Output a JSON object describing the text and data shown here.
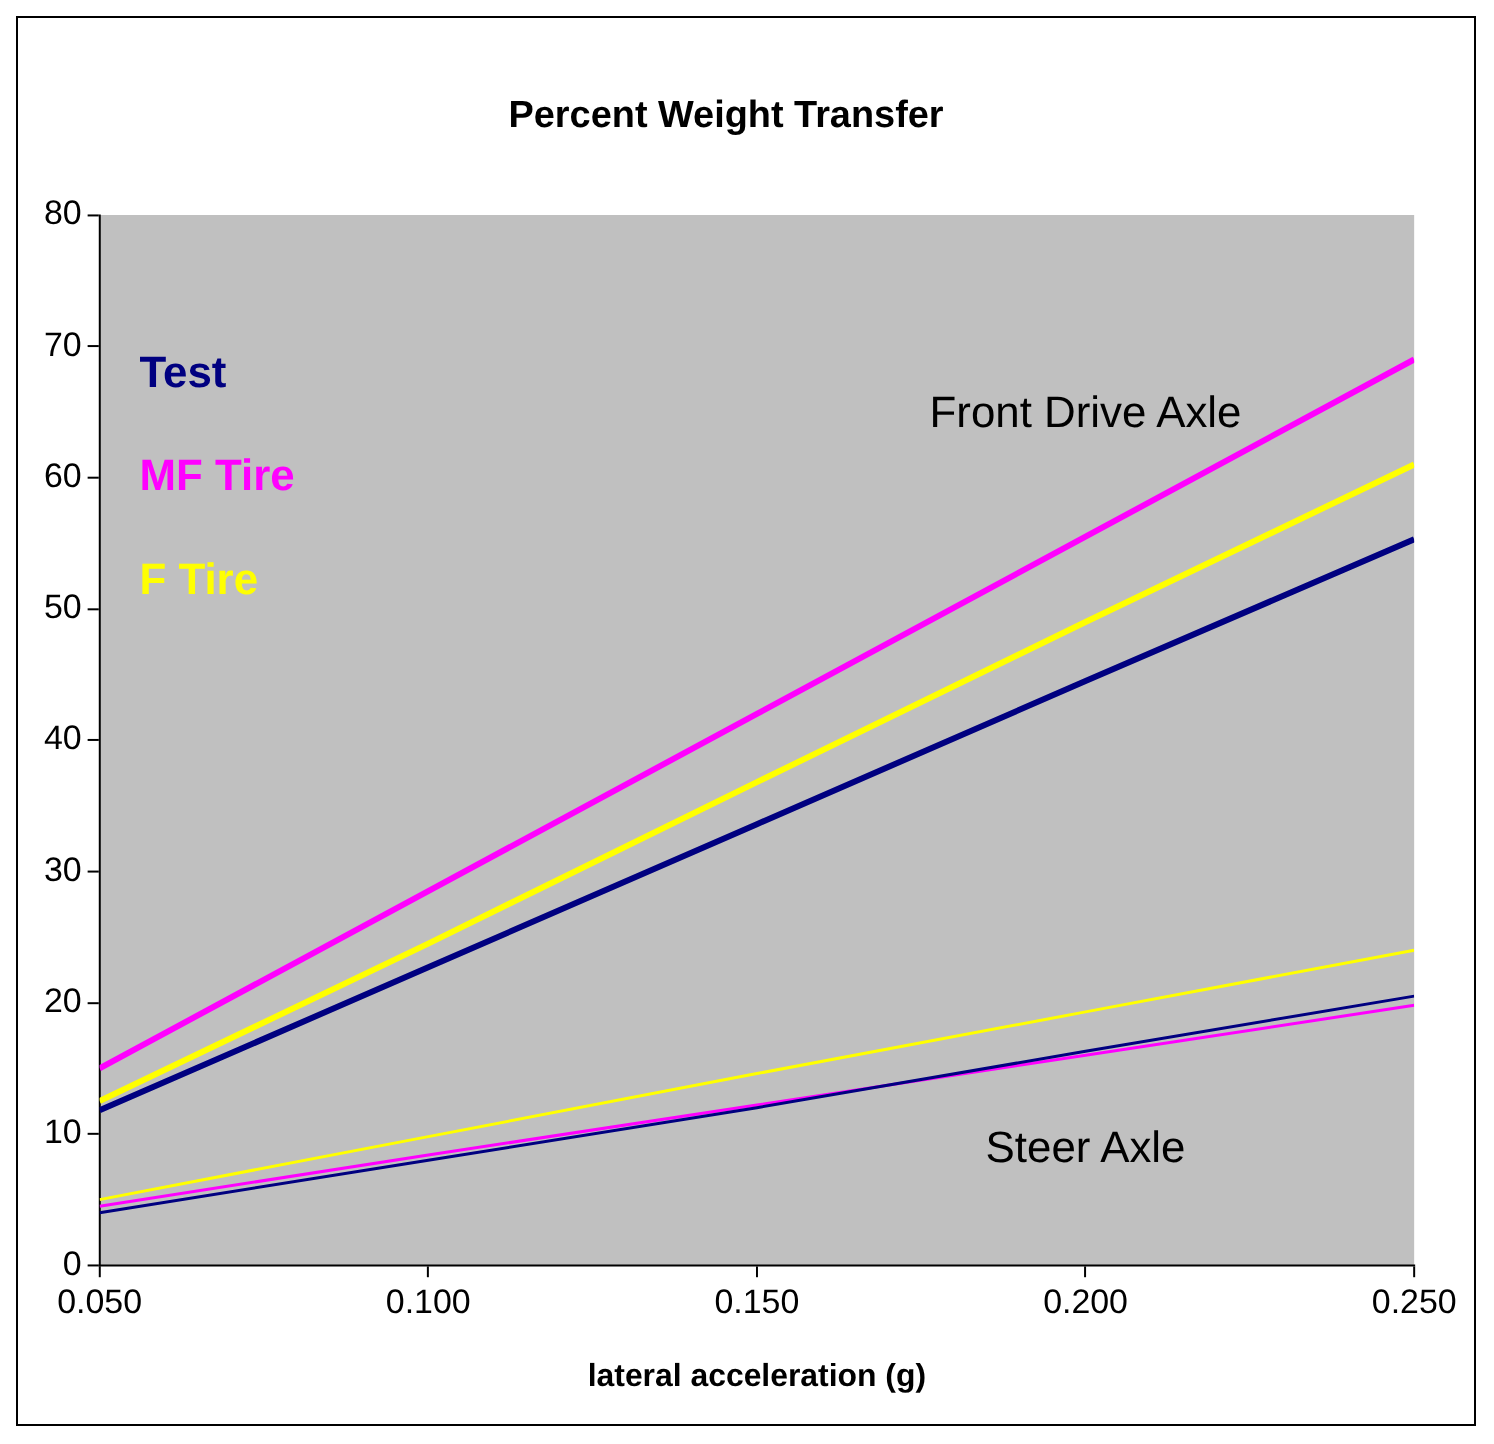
{
  "chart_data": {
    "type": "line",
    "title": "Percent Weight Transfer",
    "xlabel": "lateral acceleration (g)",
    "x": [
      0.05,
      0.1,
      0.15,
      0.2,
      0.25
    ],
    "series": [
      {
        "name": "Test",
        "color": "#000080",
        "values": [
          11.8,
          22.7,
          33.6,
          44.5,
          55.3
        ]
      },
      {
        "name": "MF Tire",
        "color": "#ff00ff",
        "values": [
          15,
          28.5,
          42,
          55.5,
          69
        ]
      },
      {
        "name": "F Tire",
        "color": "#ffff00",
        "values": [
          12.5,
          24.5,
          36.8,
          49,
          61
        ]
      },
      {
        "color": "#000080",
        "values": [
          4,
          8,
          12,
          16.3,
          20.5
        ]
      },
      {
        "color": "#ff00ff",
        "values": [
          4.5,
          8.4,
          12.2,
          16,
          19.8
        ]
      },
      {
        "color": "#ffff00",
        "values": [
          5,
          9.8,
          14.6,
          19.3,
          24
        ]
      }
    ],
    "xlim": [
      0.05,
      0.25
    ],
    "xticks": [
      {
        "value": 0.05,
        "label": "0.050"
      },
      {
        "value": 0.1,
        "label": "0.100"
      },
      {
        "value": 0.15,
        "label": "0.150"
      },
      {
        "value": 0.2,
        "label": "0.200"
      },
      {
        "value": 0.25,
        "label": "0.250"
      }
    ],
    "ylim": [
      0,
      80
    ],
    "yticks": [
      0,
      10,
      20,
      30,
      40,
      50,
      60,
      70,
      80
    ],
    "annotations": [
      "Front Drive Axle",
      "Steer Axle"
    ],
    "legend": "top left",
    "grid": false,
    "marker": "none",
    "line_style": "solid"
  }
}
